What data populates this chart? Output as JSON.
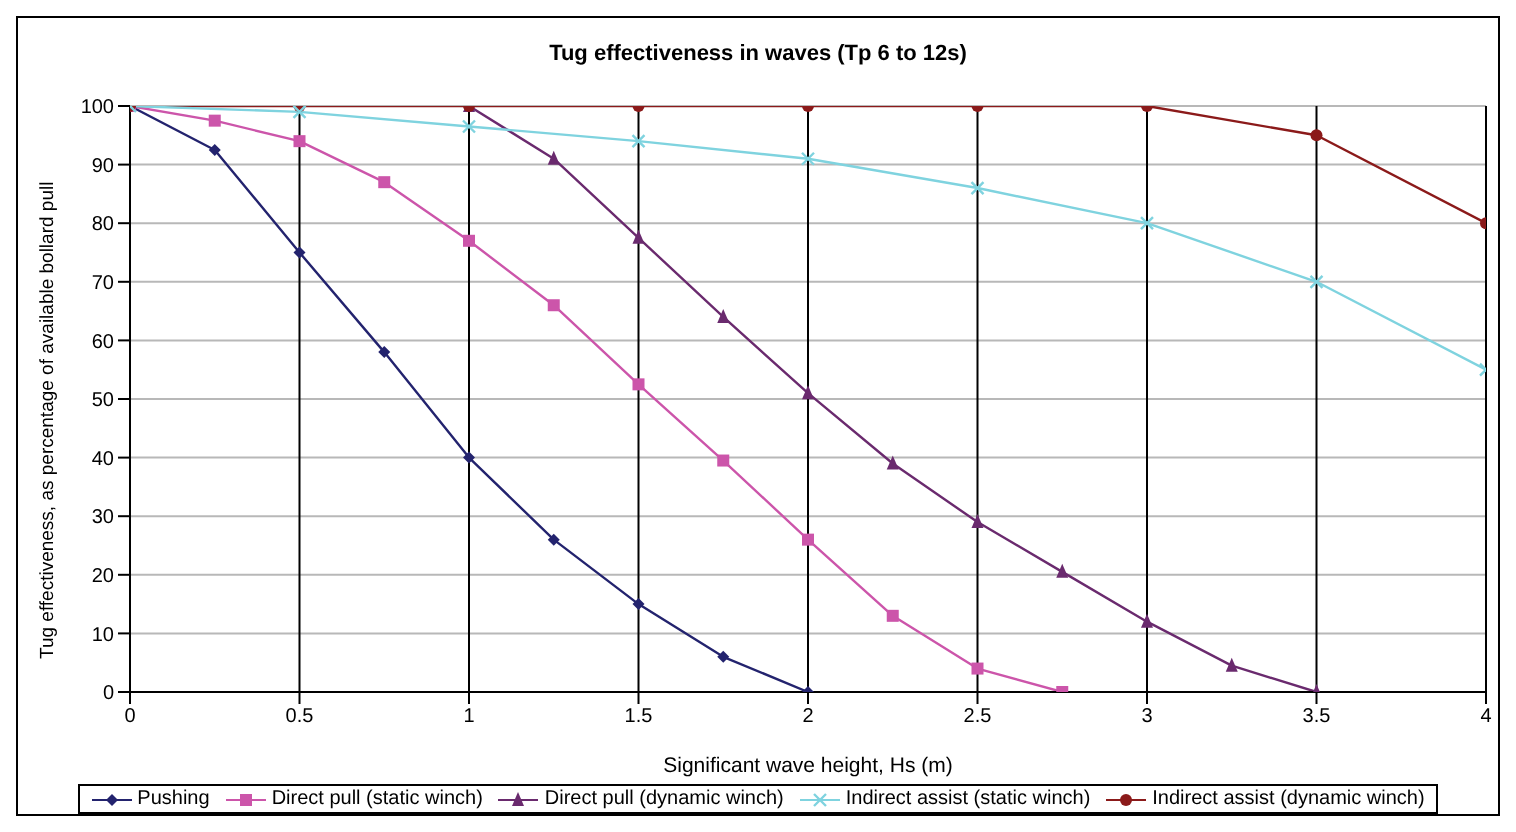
{
  "chart_data": {
    "type": "line",
    "title": "Tug effectiveness in waves (Tp 6 to 12s)",
    "xlabel": "Significant wave height, Hs (m)",
    "ylabel": "Tug effectiveness, as percentage of available bollard pull",
    "xlim": [
      0,
      4
    ],
    "xticks": [
      0,
      0.5,
      1,
      1.5,
      2,
      2.5,
      3,
      3.5,
      4
    ],
    "ylim": [
      0,
      100
    ],
    "yticks": [
      0,
      10,
      20,
      30,
      40,
      50,
      60,
      70,
      80,
      90,
      100
    ],
    "grid": true,
    "legend": "bottom",
    "series": [
      {
        "name": "Pushing",
        "color": "#23236e",
        "marker": "diamond",
        "x": [
          0,
          0.25,
          0.5,
          0.75,
          1,
          1.25,
          1.5,
          1.75,
          2
        ],
        "values": [
          100,
          92.5,
          75,
          58,
          40,
          26,
          15,
          6,
          0
        ]
      },
      {
        "name": "Direct pull (static winch)",
        "color": "#cc55aa",
        "marker": "square",
        "x": [
          0,
          0.25,
          0.5,
          0.75,
          1,
          1.25,
          1.5,
          1.75,
          2,
          2.25,
          2.5,
          2.75
        ],
        "values": [
          100,
          97.5,
          94,
          87,
          77,
          66,
          52.5,
          39.5,
          26,
          13,
          4,
          0
        ]
      },
      {
        "name": "Direct pull (dynamic winch)",
        "color": "#6a2a6e",
        "marker": "triangle",
        "x": [
          1,
          1.25,
          1.5,
          1.75,
          2,
          2.25,
          2.5,
          2.75,
          3,
          3.25,
          3.5
        ],
        "values": [
          100,
          91,
          77.5,
          64,
          51,
          39,
          29,
          20.5,
          12,
          4.5,
          0
        ]
      },
      {
        "name": "Indirect assist (static winch)",
        "color": "#7fd3df",
        "marker": "cross",
        "x": [
          0,
          0.5,
          1,
          1.5,
          2,
          2.5,
          3,
          3.5,
          4
        ],
        "values": [
          100,
          99,
          96.5,
          94,
          91,
          86,
          80,
          70,
          55
        ]
      },
      {
        "name": "Indirect assist (dynamic winch)",
        "color": "#8b1a1a",
        "marker": "circle",
        "x": [
          0,
          0.5,
          1,
          1.5,
          2,
          2.5,
          3,
          3.5,
          4
        ],
        "values": [
          100,
          100,
          100,
          100,
          100,
          100,
          100,
          95,
          80
        ]
      }
    ]
  }
}
